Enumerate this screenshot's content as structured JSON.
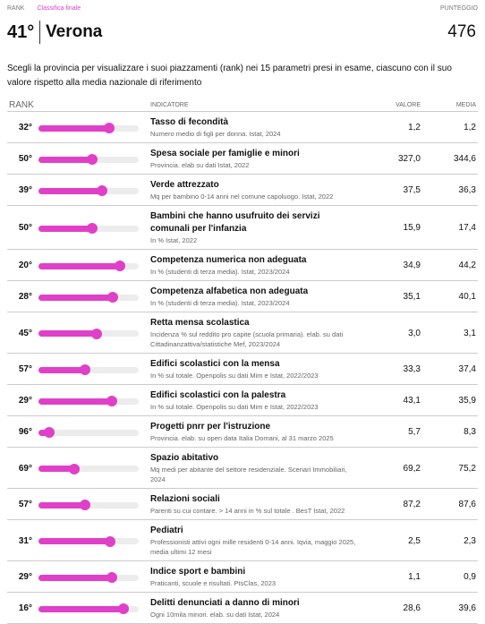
{
  "header": {
    "rank_label": "RANK",
    "subtitle": "Classifica finale",
    "score_label": "PUNTEGGIO",
    "rank": {
      "value": 41,
      "label": "41°"
    },
    "city": "Verona",
    "score": 476
  },
  "description": "Scegli la provincia per visualizzare i suoi piazzamenti (rank) nei 15 parametri presi in esame, ciascuno con il suo valore rispetto alla media nazionale di riferimento",
  "table": {
    "columns": [
      "RANK",
      "INDICATORE",
      "VALORE",
      "MEDIA"
    ],
    "rows": [
      {
        "rank": {
          "value": 32,
          "label": "32°"
        },
        "title": "Tasso di fecondità",
        "source": "Numero medio di figli per donna. Istat, 2024",
        "value": "1,2",
        "average": "1,2"
      },
      {
        "rank": {
          "value": 50,
          "label": "50°"
        },
        "title": "Spesa sociale per famiglie e minori",
        "source": "Provincia. elab su dati Istat, 2022",
        "value": "327,0",
        "average": "344,6"
      },
      {
        "rank": {
          "value": 39,
          "label": "39°"
        },
        "title": "Verde attrezzato",
        "source": "Mq per bambino 0-14 anni nel comune capoluogo. Istat, 2022",
        "value": "37,5",
        "average": "36,3"
      },
      {
        "rank": {
          "value": 50,
          "label": "50°"
        },
        "title": "Bambini che hanno usufruito dei servizi comunali per l'infanzia",
        "source": "In % Istat, 2022",
        "value": "15,9",
        "average": "17,4"
      },
      {
        "rank": {
          "value": 20,
          "label": "20°"
        },
        "title": "Competenza numerica non adeguata",
        "source": "In % (studenti di terza media). Istat, 2023/2024",
        "value": "34,9",
        "average": "44,2"
      },
      {
        "rank": {
          "value": 28,
          "label": "28°"
        },
        "title": "Competenza alfabetica non adeguata",
        "source": "In % (studenti di terza media). Istat, 2023/2024",
        "value": "35,1",
        "average": "40,1"
      },
      {
        "rank": {
          "value": 45,
          "label": "45°"
        },
        "title": "Retta mensa scolastica",
        "source": "Incidenza % sul reddito pro capite (scuola primaria). elab. su dati Cittadinanzattiva/statistiche Mef, 2023/2024",
        "value": "3,0",
        "average": "3,1"
      },
      {
        "rank": {
          "value": 57,
          "label": "57°"
        },
        "title": "Edifici scolastici con la mensa",
        "source": "In % sul totale. Openpolis su dati Mim e Istat, 2022/2023",
        "value": "33,3",
        "average": "37,4"
      },
      {
        "rank": {
          "value": 29,
          "label": "29°"
        },
        "title": "Edifici scolastici con la palestra",
        "source": "In % sul totale. Openpolis su dati Mim e Istat, 2022/2023",
        "value": "43,1",
        "average": "35,9"
      },
      {
        "rank": {
          "value": 96,
          "label": "96°"
        },
        "title": "Progetti pnrr per l'istruzione",
        "source": "Provincia. elab. su open data Italia Domani, al 31 marzo 2025",
        "value": "5,7",
        "average": "8,3"
      },
      {
        "rank": {
          "value": 69,
          "label": "69°"
        },
        "title": "Spazio abitativo",
        "source": "Mq medi per abitante del settore residenziale. Scenari Immobiliari, 2024",
        "value": "69,2",
        "average": "75,2"
      },
      {
        "rank": {
          "value": 57,
          "label": "57°"
        },
        "title": "Relazioni sociali",
        "source": "Parenti su cui contare. > 14 anni in % sul totale . BesT Istat, 2022",
        "value": "87,2",
        "average": "87,6"
      },
      {
        "rank": {
          "value": 31,
          "label": "31°"
        },
        "title": "Pediatri",
        "source": "Professionisti attivi ogni mille residenti 0-14 anni. Iqvia, maggio 2025, media ultimi 12 mesi",
        "value": "2,5",
        "average": "2,3"
      },
      {
        "rank": {
          "value": 29,
          "label": "29°"
        },
        "title": "Indice sport e bambini",
        "source": "Praticanti, scuole e risultati. PtsClas, 2023",
        "value": "1,1",
        "average": "0,9"
      },
      {
        "rank": {
          "value": 16,
          "label": "16°"
        },
        "title": "Delitti denunciati a danno di minori",
        "source": "Ogni 10mila minori. elab. su dati Istat, 2024",
        "value": "28,6",
        "average": "39,6"
      }
    ]
  }
}
